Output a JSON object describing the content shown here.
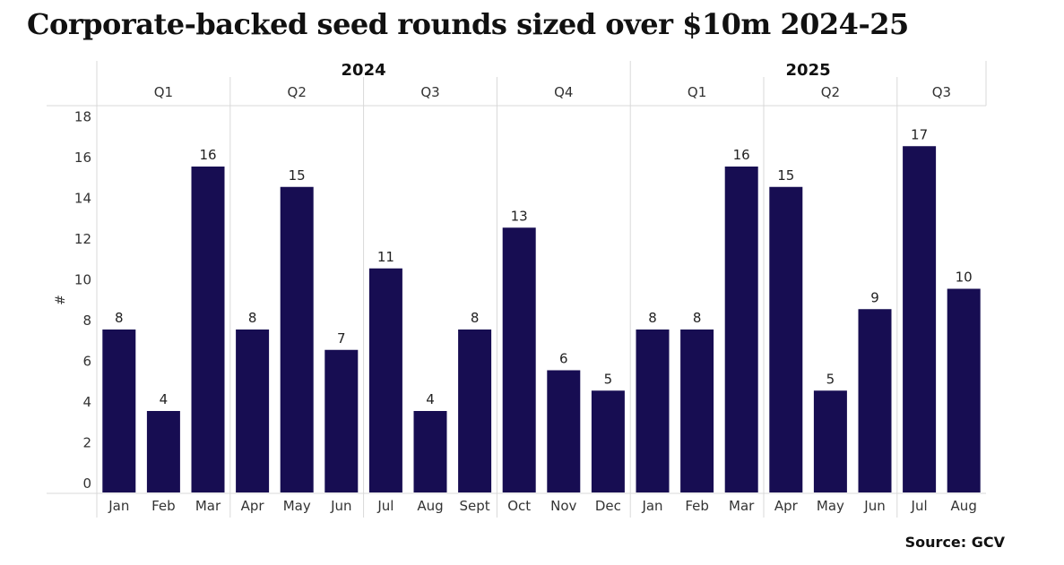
{
  "chart_data": {
    "type": "bar",
    "title": "Corporate-backed seed rounds sized over $10m 2024-25",
    "ylabel": "#",
    "xlabel": "",
    "ylim": [
      0,
      19
    ],
    "yticks": [
      0,
      2,
      4,
      6,
      8,
      10,
      12,
      14,
      16,
      18
    ],
    "bar_color": "#170d52",
    "years": [
      {
        "label": "2024",
        "quarters": [
          {
            "label": "Q1",
            "months": [
              "Jan",
              "Feb",
              "Mar"
            ]
          },
          {
            "label": "Q2",
            "months": [
              "Apr",
              "May",
              "Jun"
            ]
          },
          {
            "label": "Q3",
            "months": [
              "Jul",
              "Aug",
              "Sept"
            ]
          },
          {
            "label": "Q4",
            "months": [
              "Oct",
              "Nov",
              "Dec"
            ]
          }
        ]
      },
      {
        "label": "2025",
        "quarters": [
          {
            "label": "Q1",
            "months": [
              "Jan",
              "Feb",
              "Mar"
            ]
          },
          {
            "label": "Q2",
            "months": [
              "Apr",
              "May",
              "Jun"
            ]
          },
          {
            "label": "Q3",
            "months": [
              "Jul",
              "Aug"
            ]
          }
        ]
      }
    ],
    "categories": [
      "Jan",
      "Feb",
      "Mar",
      "Apr",
      "May",
      "Jun",
      "Jul",
      "Aug",
      "Sept",
      "Oct",
      "Nov",
      "Dec",
      "Jan",
      "Feb",
      "Mar",
      "Apr",
      "May",
      "Jun",
      "Jul",
      "Aug"
    ],
    "values": [
      8,
      4,
      16,
      8,
      15,
      7,
      11,
      4,
      8,
      13,
      6,
      5,
      8,
      8,
      16,
      15,
      5,
      9,
      17,
      10
    ]
  },
  "source": "Source: GCV"
}
